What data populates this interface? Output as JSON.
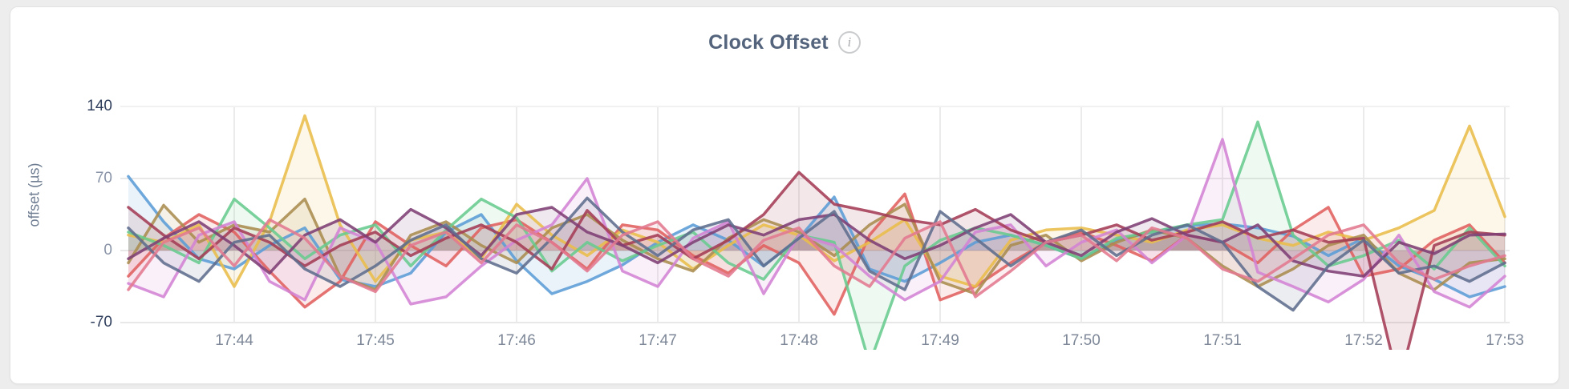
{
  "card": {
    "title": "Clock Offset",
    "info_icon": "i"
  },
  "chart_data": {
    "type": "line",
    "title": "Clock Offset",
    "xlabel": "",
    "ylabel": "offset (µs)",
    "grid": true,
    "legend_position": "none",
    "y_ticks": [
      {
        "value": 140,
        "label": "140",
        "emphasis": true
      },
      {
        "value": 70,
        "label": "70",
        "emphasis": false
      },
      {
        "value": 0,
        "label": "0",
        "emphasis": false
      },
      {
        "value": -70,
        "label": "-70",
        "emphasis": true
      }
    ],
    "ylim": [
      -95,
      170
    ],
    "x_ticks": [
      "17:44",
      "17:45",
      "17:46",
      "17:47",
      "17:48",
      "17:49",
      "17:50",
      "17:51",
      "17:52",
      "17:53"
    ],
    "x_start_offset_min": -0.75,
    "x_step_min": 0.25,
    "fill_to_zero": true,
    "series": [
      {
        "name": "blue",
        "color": "#5b9cd6",
        "values": [
          72,
          28,
          -8,
          -18,
          5,
          22,
          -28,
          -35,
          -22,
          18,
          35,
          -10,
          -42,
          -30,
          -14,
          8,
          25,
          10,
          -15,
          12,
          52,
          -18,
          -30,
          -12,
          8,
          15,
          5,
          -8,
          10,
          18,
          24,
          26,
          22,
          14,
          -5,
          12,
          -15,
          -28,
          -45,
          -35
        ]
      },
      {
        "name": "coral",
        "color": "#e0605e",
        "values": [
          -25,
          12,
          35,
          18,
          -20,
          -55,
          -30,
          28,
          5,
          -15,
          22,
          30,
          8,
          -18,
          25,
          20,
          -5,
          -22,
          5,
          -12,
          -62,
          15,
          55,
          -48,
          -35,
          -12,
          8,
          18,
          5,
          -10,
          15,
          8,
          -12,
          20,
          42,
          -25,
          -18,
          10,
          25,
          -12
        ]
      },
      {
        "name": "gold",
        "color": "#e9bd4a",
        "values": [
          15,
          8,
          25,
          -35,
          28,
          131,
          25,
          -30,
          10,
          18,
          -8,
          45,
          15,
          -5,
          20,
          8,
          -18,
          5,
          25,
          15,
          -10,
          8,
          30,
          -25,
          -35,
          10,
          20,
          22,
          15,
          8,
          20,
          25,
          12,
          5,
          18,
          10,
          22,
          39,
          121,
          33
        ]
      },
      {
        "name": "olive",
        "color": "#aa8c4e",
        "values": [
          -12,
          44,
          8,
          25,
          18,
          50,
          -25,
          -38,
          15,
          28,
          5,
          -12,
          22,
          35,
          10,
          -8,
          -20,
          12,
          30,
          18,
          -5,
          25,
          45,
          -30,
          -42,
          5,
          15,
          -10,
          8,
          20,
          12,
          -15,
          -35,
          -18,
          5,
          15,
          -22,
          -38,
          -12,
          -8
        ]
      },
      {
        "name": "green",
        "color": "#68cb8e",
        "values": [
          18,
          5,
          -12,
          50,
          22,
          -8,
          15,
          25,
          -15,
          20,
          50,
          32,
          -20,
          8,
          -10,
          5,
          18,
          -12,
          -28,
          15,
          8,
          -110,
          -15,
          10,
          22,
          15,
          5,
          -8,
          12,
          18,
          25,
          30,
          125,
          15,
          -15,
          -5,
          10,
          -18,
          22,
          -15
        ]
      },
      {
        "name": "orchid",
        "color": "#d383d4",
        "values": [
          -32,
          -45,
          15,
          28,
          -30,
          -48,
          22,
          8,
          -52,
          -45,
          -15,
          10,
          25,
          70,
          -20,
          -35,
          12,
          28,
          -42,
          15,
          5,
          -25,
          -48,
          -30,
          18,
          25,
          -15,
          8,
          20,
          -12,
          15,
          108,
          -21,
          -35,
          -50,
          -28,
          15,
          -40,
          -55,
          -25
        ]
      },
      {
        "name": "maroon",
        "color": "#a43c55",
        "values": [
          42,
          15,
          -8,
          22,
          8,
          -15,
          5,
          18,
          -5,
          12,
          25,
          8,
          -18,
          39,
          5,
          15,
          -8,
          10,
          35,
          76,
          45,
          38,
          30,
          25,
          40,
          20,
          8,
          15,
          25,
          10,
          18,
          28,
          12,
          20,
          8,
          12,
          -130,
          5,
          18,
          15
        ]
      },
      {
        "name": "plum",
        "color": "#7e3f74",
        "values": [
          -8,
          12,
          28,
          5,
          -22,
          15,
          30,
          8,
          40,
          22,
          -5,
          35,
          42,
          18,
          5,
          -12,
          8,
          25,
          15,
          30,
          35,
          10,
          -8,
          5,
          22,
          35,
          8,
          -5,
          18,
          31,
          15,
          8,
          25,
          -10,
          -20,
          -25,
          8,
          -3,
          15,
          16
        ]
      },
      {
        "name": "slate",
        "color": "#5f6d8d",
        "values": [
          22,
          -12,
          -30,
          8,
          15,
          -18,
          -35,
          -15,
          10,
          25,
          -8,
          -22,
          12,
          51,
          18,
          -5,
          20,
          30,
          -15,
          12,
          38,
          -20,
          -38,
          38,
          12,
          -15,
          8,
          20,
          -5,
          15,
          25,
          8,
          -35,
          -58,
          -15,
          10,
          -22,
          -15,
          -30,
          -12
        ]
      },
      {
        "name": "rose",
        "color": "#e2798f",
        "values": [
          -38,
          8,
          22,
          -15,
          30,
          12,
          -25,
          -40,
          5,
          18,
          -12,
          25,
          8,
          -20,
          15,
          28,
          -8,
          -25,
          10,
          22,
          -15,
          -35,
          12,
          28,
          -45,
          -20,
          8,
          15,
          -10,
          22,
          12,
          -18,
          -30,
          -8,
          15,
          25,
          -12,
          -28,
          -15,
          -5
        ]
      }
    ]
  },
  "style": {
    "grid_color_v": "#ebebeb",
    "grid_color_h": "#e8e8e8",
    "grid_color_top": "#f1f1f1",
    "line_width": 3.5,
    "line_opacity": 0.88,
    "fill_opacity": 0.12
  }
}
